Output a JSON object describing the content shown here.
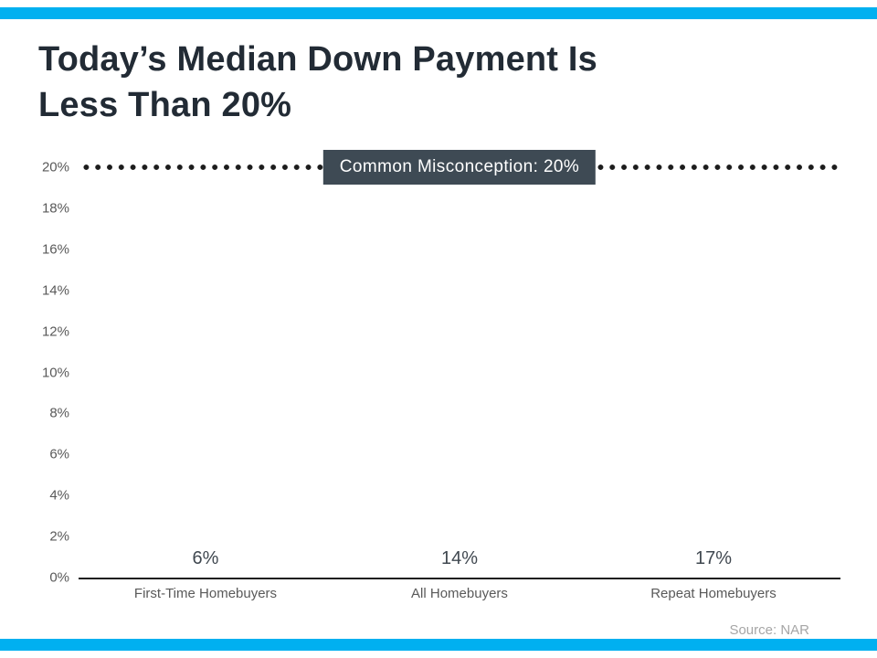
{
  "page": {
    "title_line1": "Today’s Median Down Payment Is",
    "title_line2": "Less Than 20%",
    "source": "Source: NAR",
    "accent_color": "#00B0F0",
    "callout_color": "#3E4A54"
  },
  "chart_data": {
    "type": "bar",
    "title": "Today’s Median Down Payment Is Less Than 20%",
    "categories": [
      "First-Time Homebuyers",
      "All Homebuyers",
      "Repeat Homebuyers"
    ],
    "values": [
      6,
      14,
      17
    ],
    "value_labels": [
      "6%",
      "14%",
      "17%"
    ],
    "xlabel": "",
    "ylabel": "",
    "ylim": [
      0,
      20
    ],
    "ytick_step": 2,
    "ytick_labels": [
      "0%",
      "2%",
      "4%",
      "6%",
      "8%",
      "10%",
      "12%",
      "14%",
      "16%",
      "18%",
      "20%"
    ],
    "grid": false,
    "legend": false,
    "bar_color": "#00AEEF",
    "annotation": {
      "text": "Common Misconception: 20%",
      "y": 20
    }
  }
}
